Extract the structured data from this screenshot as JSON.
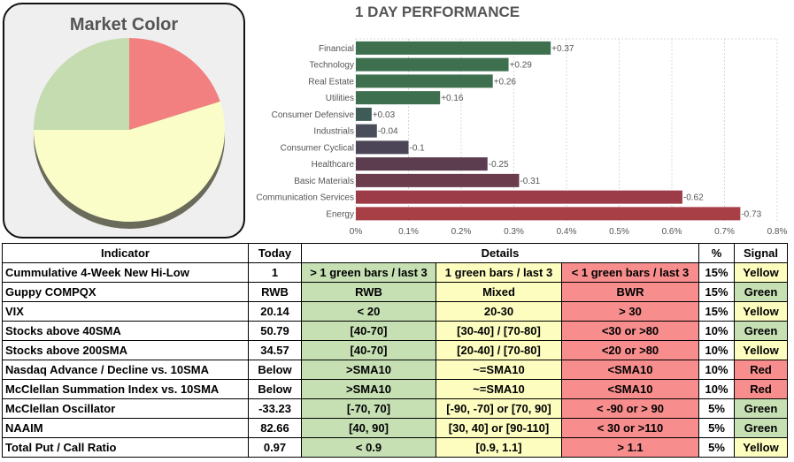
{
  "market_color": {
    "title": "Market Color",
    "chart_data": {
      "type": "pie",
      "slices": [
        {
          "label": "Red",
          "value": 0.2,
          "color": "#f28080"
        },
        {
          "label": "Yellow",
          "value": 0.55,
          "color": "#fbfdc8"
        },
        {
          "label": "Green",
          "value": 0.25,
          "color": "#c4dcb0"
        }
      ]
    }
  },
  "chart_data": {
    "type": "bar",
    "orientation": "horizontal",
    "title": "1 DAY PERFORMANCE",
    "categories": [
      "Financial",
      "Technology",
      "Real Estate",
      "Utilities",
      "Consumer Defensive",
      "Industrials",
      "Consumer Cyclical",
      "Healthcare",
      "Basic Materials",
      "Communication Services",
      "Energy"
    ],
    "values": [
      0.37,
      0.29,
      0.26,
      0.16,
      0.03,
      -0.04,
      -0.1,
      -0.25,
      -0.31,
      -0.62,
      -0.73
    ],
    "value_labels": [
      "+0.37",
      "+0.29",
      "+0.26",
      "+0.16",
      "+0.03",
      "-0.04",
      "-0.1",
      "-0.25",
      "-0.31",
      "-0.62",
      "-0.73"
    ],
    "colors": [
      "#3e7050",
      "#3e7050",
      "#3e7050",
      "#3e7050",
      "#3e5b57",
      "#4a4e5a",
      "#4c4557",
      "#5c3d4f",
      "#6a3c4c",
      "#9c3c48",
      "#a83f47"
    ],
    "xlim": [
      0,
      0.8
    ],
    "xticks": [
      "0%",
      "0.1%",
      "0.2%",
      "0.3%",
      "0.4%",
      "0.5%",
      "0.6%",
      "0.7%",
      "0.8%"
    ],
    "grid": true
  },
  "table": {
    "headers": {
      "indicator": "Indicator",
      "today": "Today",
      "details": "Details",
      "pct": "%",
      "signal": "Signal"
    },
    "rows": [
      {
        "indicator": "Cummulative 4-Week New Hi-Low",
        "today": "1",
        "green": "> 1 green bars / last 3",
        "yellow": "1 green bars / last 3",
        "red": "< 1 green bars / last 3",
        "pct": "15%",
        "signal": "Yellow",
        "signal_class": "y"
      },
      {
        "indicator": "Guppy COMPQX",
        "today": "RWB",
        "green": "RWB",
        "yellow": "Mixed",
        "red": "BWR",
        "pct": "15%",
        "signal": "Green",
        "signal_class": "g"
      },
      {
        "indicator": "VIX",
        "today": "20.14",
        "green": "< 20",
        "yellow": "20-30",
        "red": "> 30",
        "pct": "15%",
        "signal": "Yellow",
        "signal_class": "y"
      },
      {
        "indicator": "Stocks above 40SMA",
        "today": "50.79",
        "green": "[40-70]",
        "yellow": "[30-40] / [70-80]",
        "red": "<30 or >80",
        "pct": "10%",
        "signal": "Green",
        "signal_class": "g"
      },
      {
        "indicator": "Stocks above 200SMA",
        "today": "34.57",
        "green": "[40-70]",
        "yellow": "[20-40] / [70-80]",
        "red": "<20 or >80",
        "pct": "10%",
        "signal": "Yellow",
        "signal_class": "y"
      },
      {
        "indicator": "Nasdaq Advance / Decline vs. 10SMA",
        "today": "Below",
        "green": ">SMA10",
        "yellow": "~=SMA10",
        "red": "<SMA10",
        "pct": "10%",
        "signal": "Red",
        "signal_class": "r"
      },
      {
        "indicator": "McClellan Summation Index vs. 10SMA",
        "today": "Below",
        "green": ">SMA10",
        "yellow": "~=SMA10",
        "red": "<SMA10",
        "pct": "10%",
        "signal": "Red",
        "signal_class": "r"
      },
      {
        "indicator": "McClellan Oscillator",
        "today": "-33.23",
        "green": "[-70,  70]",
        "yellow": "[-90, -70] or [70, 90]",
        "red": "< -90 or > 90",
        "pct": "5%",
        "signal": "Green",
        "signal_class": "g"
      },
      {
        "indicator": "NAAIM",
        "today": "82.66",
        "green": "[40, 90]",
        "yellow": "[30, 40] or [90-110]",
        "red": "< 30 or >110",
        "pct": "5%",
        "signal": "Green",
        "signal_class": "g"
      },
      {
        "indicator": "Total Put / Call Ratio",
        "today": "0.97",
        "green": "< 0.9",
        "yellow": "[0.9, 1.1]",
        "red": "> 1.1",
        "pct": "5%",
        "signal": "Yellow",
        "signal_class": "y"
      }
    ]
  }
}
